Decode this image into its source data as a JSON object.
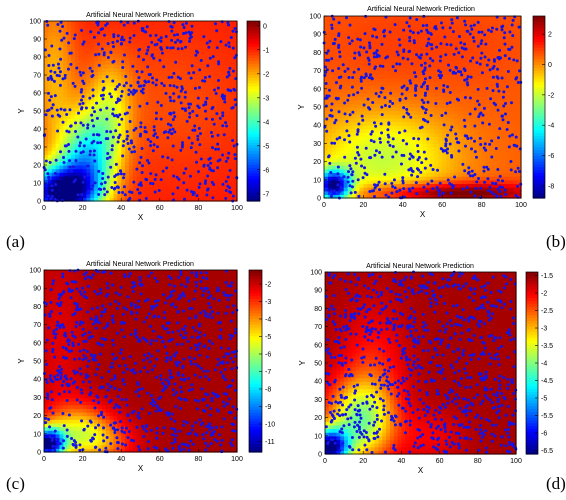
{
  "figure": {
    "panel_labels": [
      "(a)",
      "(b)",
      "(c)",
      "(d)"
    ]
  },
  "chart_data": [
    {
      "type": "heatmap",
      "title": "Artificial Neural Network Prediction",
      "xlabel": "X",
      "ylabel": "Y",
      "xlim": [
        0,
        100
      ],
      "ylim": [
        0,
        100
      ],
      "xticks": [
        0,
        20,
        40,
        60,
        80,
        100
      ],
      "yticks": [
        0,
        10,
        20,
        30,
        40,
        50,
        60,
        70,
        80,
        90,
        100
      ],
      "colorbar": {
        "min": -7.3,
        "max": 0.2,
        "ticks": [
          0,
          -1,
          -2,
          -3,
          -4,
          -5,
          -6,
          -7
        ]
      },
      "colormap": "jet",
      "marker_color": "#1414e6",
      "field": {
        "base": -0.9,
        "gaussians": [
          {
            "x": 8,
            "y": 5,
            "amp": -6.4,
            "sx": 12,
            "sy": 10
          },
          {
            "x": 22,
            "y": 22,
            "amp": -3.6,
            "sx": 10,
            "sy": 18
          },
          {
            "x": 34,
            "y": 50,
            "amp": -1.5,
            "sx": 8,
            "sy": 20
          },
          {
            "x": 5,
            "y": 72,
            "amp": -1.1,
            "sx": 8,
            "sy": 30
          },
          {
            "x": 65,
            "y": 55,
            "amp": -0.4,
            "sx": 30,
            "sy": 30
          }
        ]
      },
      "points_seed": 11,
      "points_count": 700
    },
    {
      "type": "heatmap",
      "title": "Artificial Neural Network Prediction",
      "xlabel": "X",
      "ylabel": "Y",
      "xlim": [
        0,
        100
      ],
      "ylim": [
        0,
        100
      ],
      "xticks": [
        0,
        20,
        40,
        60,
        80,
        100
      ],
      "yticks": [
        0,
        10,
        20,
        30,
        40,
        50,
        60,
        70,
        80,
        90,
        100
      ],
      "colorbar": {
        "min": -8.8,
        "max": 3.2,
        "ticks": [
          2,
          0,
          -2,
          -4,
          -6,
          -8
        ]
      },
      "colormap": "jet",
      "marker_color": "#1414e6",
      "field": {
        "base": 0.6,
        "gaussians": [
          {
            "x": 5,
            "y": 7,
            "amp": -9.0,
            "sx": 6,
            "sy": 6
          },
          {
            "x": 30,
            "y": 22,
            "amp": -2.6,
            "sx": 25,
            "sy": 18
          },
          {
            "x": 65,
            "y": 3,
            "amp": 3.2,
            "sx": 30,
            "sy": 4
          },
          {
            "x": 50,
            "y": 85,
            "amp": 0.4,
            "sx": 40,
            "sy": 20
          }
        ]
      },
      "points_seed": 23,
      "points_count": 700
    },
    {
      "type": "heatmap",
      "title": "Artificial Neural Network Prediction",
      "xlabel": "X",
      "ylabel": "Y",
      "xlim": [
        0,
        100
      ],
      "ylim": [
        0,
        100
      ],
      "xticks": [
        0,
        20,
        40,
        60,
        80,
        100
      ],
      "yticks": [
        0,
        10,
        20,
        30,
        40,
        50,
        60,
        70,
        80,
        90,
        100
      ],
      "colorbar": {
        "min": -11.6,
        "max": -1.2,
        "ticks": [
          -2,
          -3,
          -4,
          -5,
          -6,
          -7,
          -8,
          -9,
          -10,
          -11
        ]
      },
      "colormap": "jet",
      "marker_color": "#1414e6",
      "field": {
        "base": -1.6,
        "gaussians": [
          {
            "x": 2,
            "y": 5,
            "amp": -9.5,
            "sx": 6,
            "sy": 6
          },
          {
            "x": 18,
            "y": 12,
            "amp": -3.0,
            "sx": 12,
            "sy": 10
          },
          {
            "x": 30,
            "y": 5,
            "amp": -1.6,
            "sx": 12,
            "sy": 8
          },
          {
            "x": 8,
            "y": 55,
            "amp": -0.6,
            "sx": 10,
            "sy": 40
          }
        ]
      },
      "points_seed": 37,
      "points_count": 900
    },
    {
      "type": "heatmap",
      "title": "Artificial Neural Network Prediction",
      "xlabel": "X",
      "ylabel": "Y",
      "xlim": [
        0,
        100
      ],
      "ylim": [
        0,
        100
      ],
      "xticks": [
        0,
        20,
        40,
        60,
        80,
        100
      ],
      "yticks": [
        0,
        10,
        20,
        30,
        40,
        50,
        60,
        70,
        80,
        90,
        100
      ],
      "colorbar": {
        "min": -6.6,
        "max": -1.4,
        "ticks": [
          -1.5,
          -2,
          -2.5,
          -3,
          -3.5,
          -4,
          -4.5,
          -5,
          -5.5,
          -6,
          -6.5
        ]
      },
      "colormap": "jet",
      "marker_color": "#1414e6",
      "field": {
        "base": -1.6,
        "gaussians": [
          {
            "x": 2,
            "y": 4,
            "amp": -4.8,
            "sx": 7,
            "sy": 7
          },
          {
            "x": 18,
            "y": 18,
            "amp": -2.2,
            "sx": 12,
            "sy": 15
          },
          {
            "x": 25,
            "y": 45,
            "amp": -0.6,
            "sx": 12,
            "sy": 25
          },
          {
            "x": 55,
            "y": 10,
            "amp": -0.4,
            "sx": 12,
            "sy": 10
          }
        ]
      },
      "points_seed": 53,
      "points_count": 900
    }
  ]
}
